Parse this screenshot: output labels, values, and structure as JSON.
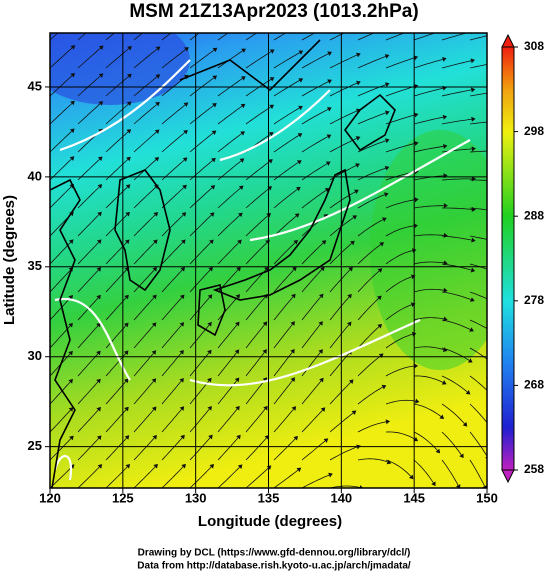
{
  "chart_data": {
    "type": "map",
    "title": "MSM 21Z13Apr2023 (1013.2hPa)",
    "x_label": "Longitude (degrees)",
    "y_label": "Latitude  (degrees)",
    "xlim": [
      120,
      150
    ],
    "xticks": [
      120,
      125,
      130,
      135,
      140,
      145,
      150
    ],
    "ylim": [
      22.7,
      48
    ],
    "yticks": [
      25,
      30,
      35,
      40,
      45
    ],
    "grid": true,
    "colorbar": {
      "range": [
        258,
        308
      ],
      "ticks": [
        258,
        268,
        278,
        288,
        298,
        308
      ]
    },
    "credits": [
      "Drawing by DCL (https://www.gfd-dennou.org/library/dcl/)",
      "Data from http://database.rish.kyoto-u.ac.jp/arch/jmadata/"
    ]
  }
}
